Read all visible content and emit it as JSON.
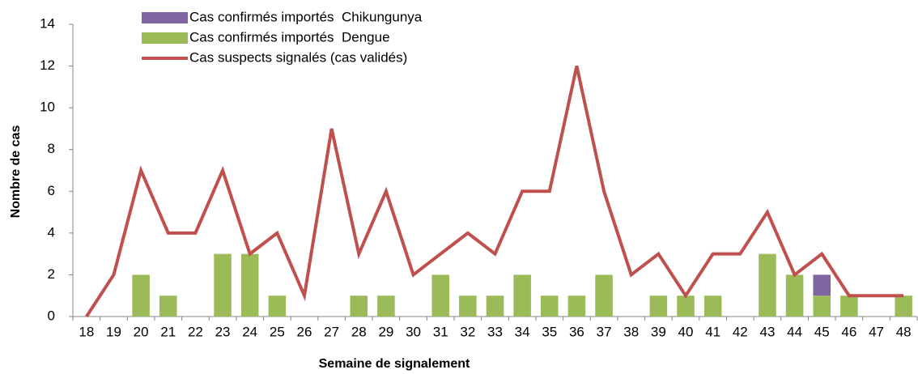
{
  "chart_data": {
    "type": "bar-line",
    "xlabel": "Semaine de signalement",
    "ylabel": "Nombre de cas",
    "categories": [
      "18",
      "19",
      "20",
      "21",
      "22",
      "23",
      "24",
      "25",
      "26",
      "27",
      "28",
      "29",
      "30",
      "31",
      "32",
      "33",
      "34",
      "35",
      "36",
      "37",
      "38",
      "39",
      "40",
      "41",
      "42",
      "43",
      "44",
      "45",
      "46",
      "47",
      "48"
    ],
    "series": [
      {
        "name": "Cas confirmés importés  Chikungunya",
        "type": "bar",
        "color": "#8064a2",
        "values": [
          0,
          0,
          0,
          0,
          0,
          0,
          0,
          0,
          0,
          0,
          0,
          0,
          0,
          0,
          0,
          0,
          0,
          0,
          0,
          0,
          0,
          0,
          0,
          0,
          0,
          0,
          0,
          1,
          0,
          0,
          0
        ]
      },
      {
        "name": "Cas confirmés importés  Dengue",
        "type": "bar",
        "color": "#9bbb59",
        "values": [
          0,
          0,
          2,
          1,
          0,
          3,
          3,
          1,
          0,
          0,
          1,
          1,
          0,
          2,
          1,
          1,
          2,
          1,
          1,
          2,
          0,
          1,
          1,
          1,
          0,
          3,
          2,
          1,
          1,
          0,
          1
        ]
      },
      {
        "name": "Cas suspects signalés (cas validés)",
        "type": "line",
        "color": "#c0504d",
        "values": [
          0,
          2,
          7,
          4,
          4,
          7,
          3,
          4,
          1,
          9,
          3,
          6,
          2,
          3,
          4,
          3,
          6,
          6,
          12,
          6,
          2,
          3,
          1,
          3,
          3,
          5,
          2,
          3,
          1,
          1,
          1
        ]
      }
    ],
    "stack_order": [
      1,
      0
    ],
    "ylim": [
      0,
      14
    ],
    "yticks": [
      0,
      2,
      4,
      6,
      8,
      10,
      12,
      14
    ],
    "grid": false,
    "legend": "top-left"
  }
}
